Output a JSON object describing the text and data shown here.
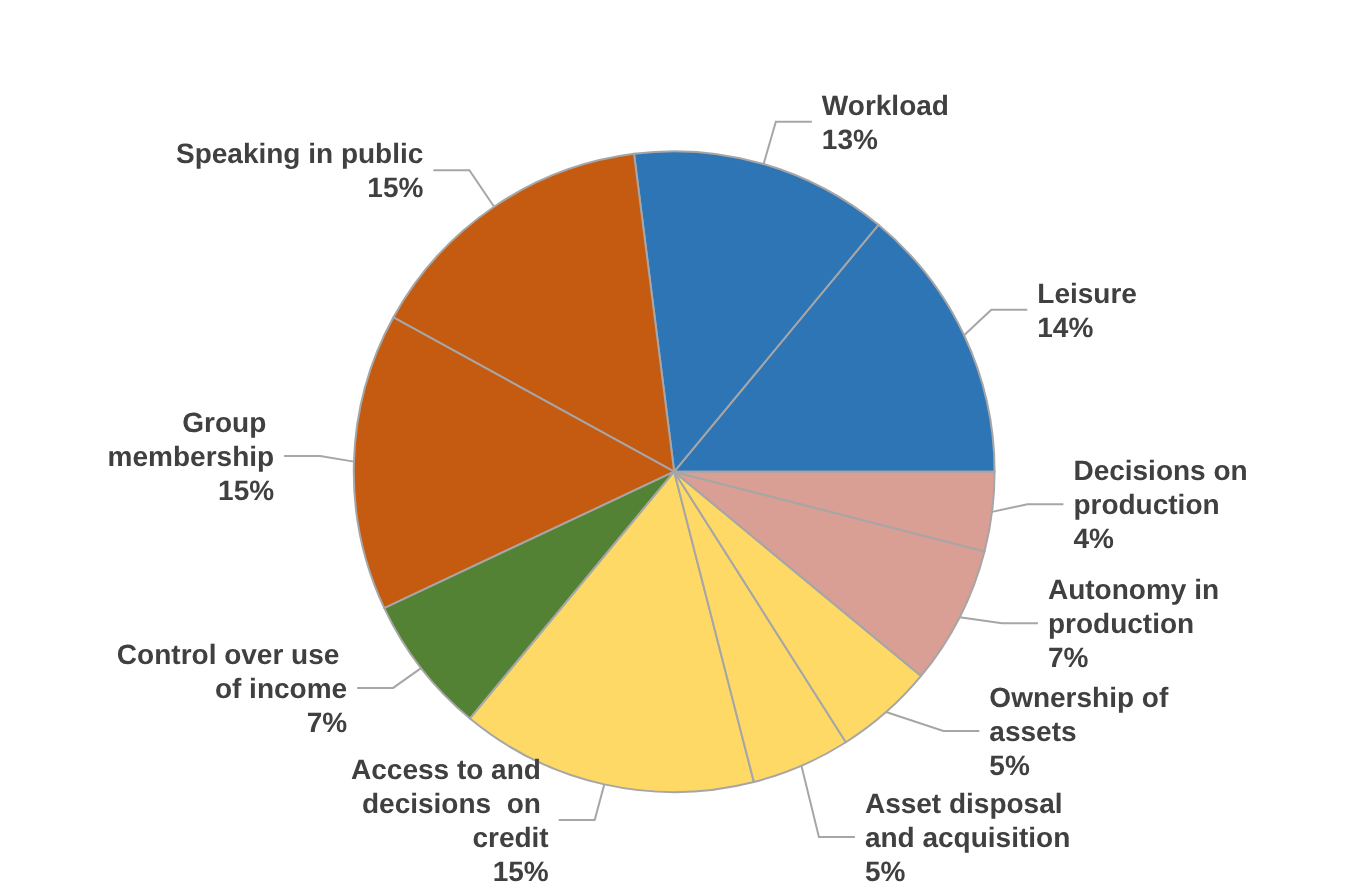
{
  "chart_data": {
    "type": "pie",
    "categories": [
      "Leisure",
      "Workload",
      "Speaking in public",
      "Group membership",
      "Control over use of income",
      "Access to and decisions  on credit",
      "Asset disposal and acquisition",
      "Ownership of assets",
      "Autonomy in production",
      "Decisions on production"
    ],
    "values": [
      14,
      13,
      15,
      15,
      7,
      15,
      5,
      5,
      7,
      4
    ],
    "value_labels": [
      "14%",
      "13%",
      "15%",
      "15%",
      "7%",
      "15%",
      "5%",
      "5%",
      "7%",
      "4%"
    ],
    "colors": [
      "#2e75b6",
      "#2e75b6",
      "#c55a11",
      "#c55a11",
      "#548235",
      "#ffd966",
      "#ffd966",
      "#ffd966",
      "#d99e94",
      "#d99e94"
    ],
    "legend": false
  }
}
